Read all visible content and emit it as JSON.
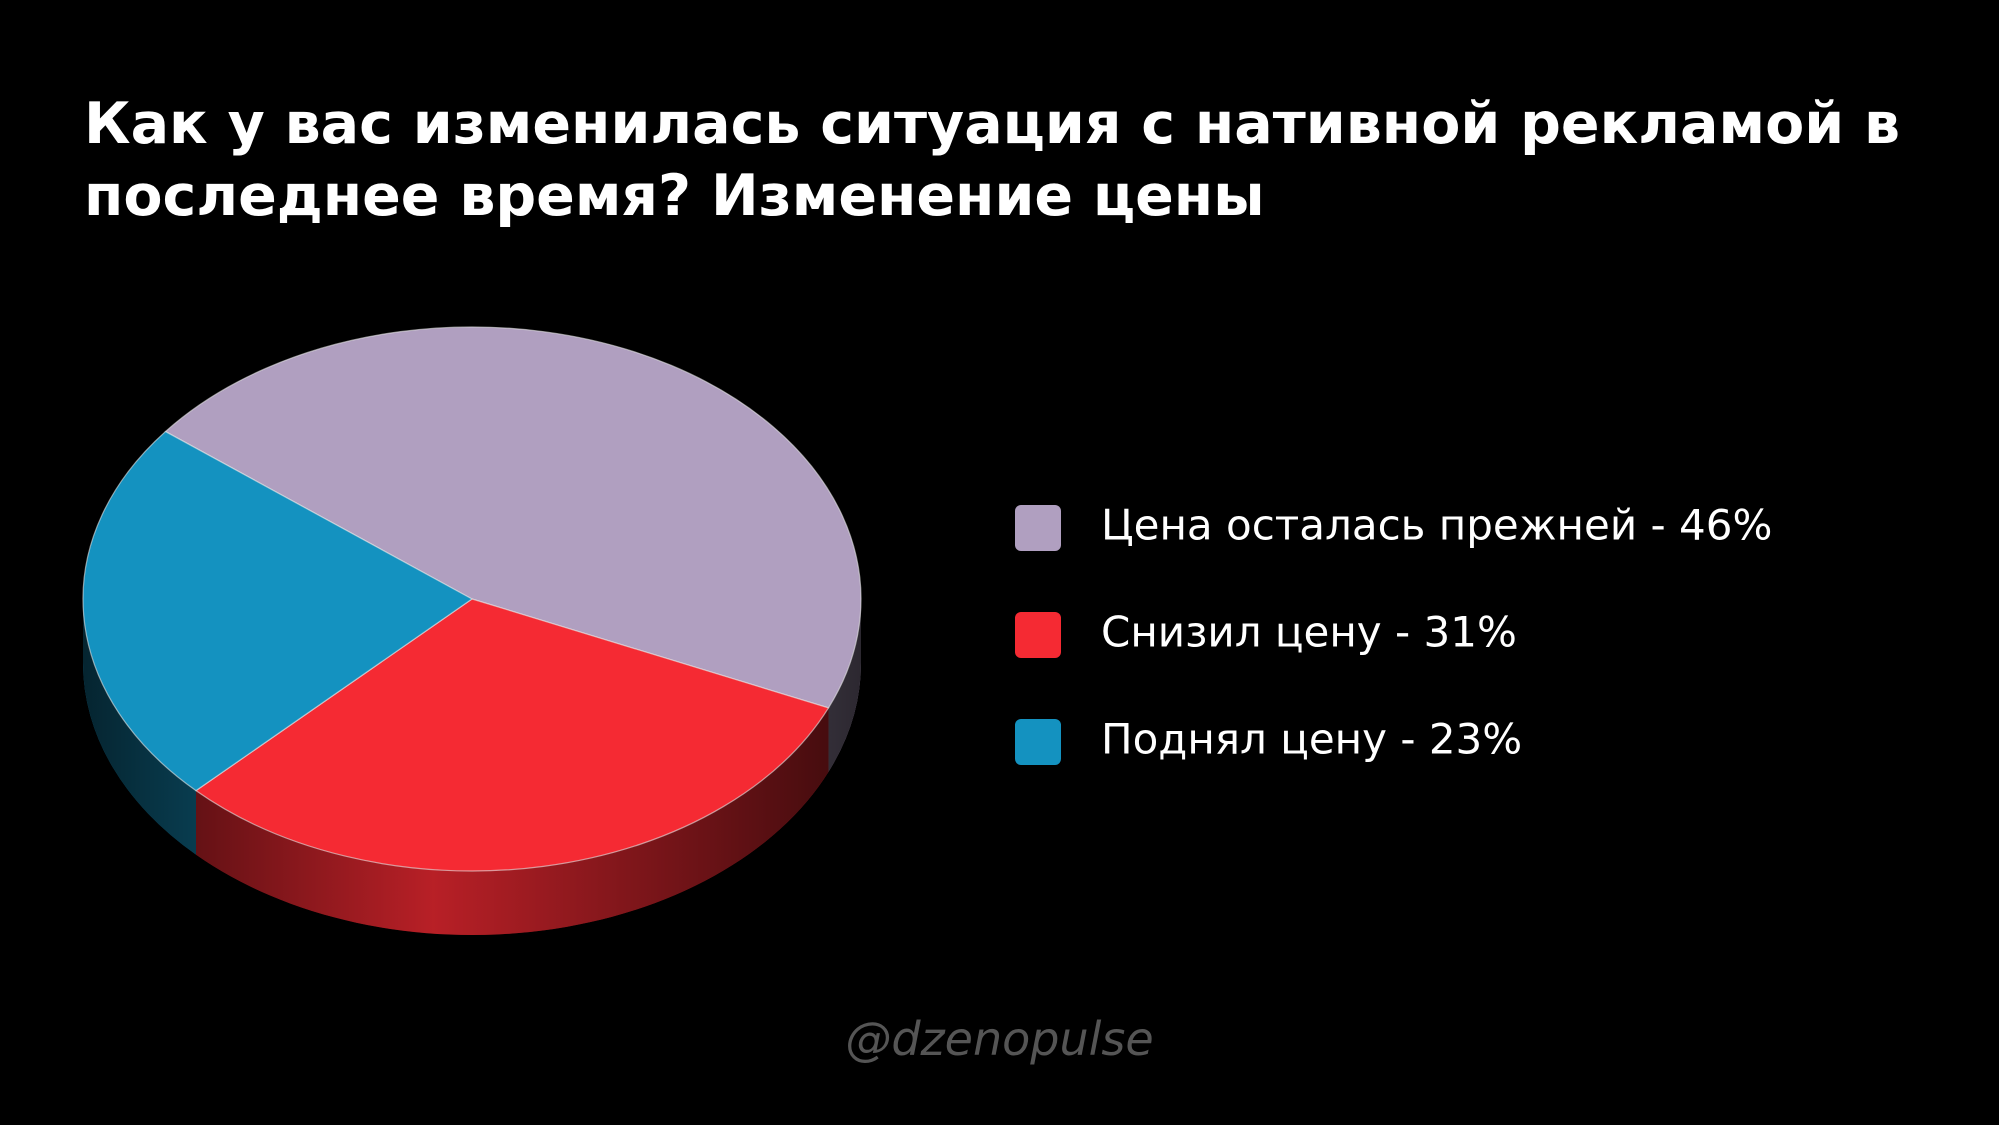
{
  "chart_data": {
    "type": "pie",
    "title": "Как у вас изменилась ситуация с нативной рекламой в последнее время? Изменение цены",
    "categories": [
      "Цена осталась прежней - 46%",
      "Снизил цену - 31%",
      "Поднял цену - 23%"
    ],
    "values": [
      46,
      31,
      23
    ],
    "colors": [
      "#b09fc0",
      "#f52a33",
      "#1492c0"
    ],
    "legend": "right",
    "annotation": "@dzenopulse"
  }
}
